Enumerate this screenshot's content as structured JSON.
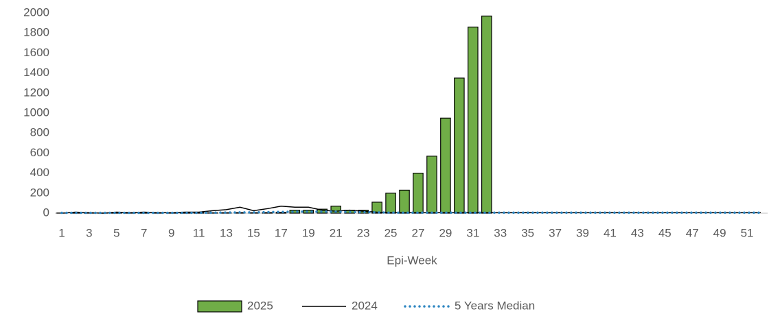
{
  "chart_data": {
    "type": "bar",
    "x_label": "Epi-Week",
    "categories": [
      "1",
      null,
      "3",
      null,
      "5",
      null,
      "7",
      null,
      "9",
      null,
      "11",
      null,
      "13",
      null,
      "15",
      null,
      "17",
      null,
      "19",
      null,
      "21",
      null,
      "23",
      null,
      "25",
      null,
      "27",
      null,
      "29",
      null,
      "31",
      null,
      "33",
      null,
      "35",
      null,
      "37",
      null,
      "39",
      null,
      "41",
      null,
      "43",
      null,
      "45",
      null,
      "47",
      null,
      "49",
      null,
      "51",
      null
    ],
    "series": [
      {
        "name": "2025",
        "type": "bar",
        "color": "#70ad47",
        "values": [
          2,
          3,
          2,
          3,
          4,
          3,
          4,
          3,
          3,
          4,
          5,
          4,
          5,
          6,
          5,
          6,
          8,
          30,
          30,
          40,
          70,
          30,
          30,
          110,
          200,
          230,
          400,
          570,
          950,
          1350,
          1860,
          1970,
          null,
          null,
          null,
          null,
          null,
          null,
          null,
          null,
          null,
          null,
          null,
          null,
          null,
          null,
          null,
          null,
          null,
          null,
          null,
          null
        ]
      },
      {
        "name": "2024",
        "type": "line",
        "color": "#000000",
        "values": [
          0,
          10,
          5,
          0,
          10,
          5,
          10,
          5,
          5,
          10,
          10,
          25,
          35,
          60,
          25,
          45,
          70,
          60,
          60,
          30,
          20,
          30,
          20,
          10,
          5,
          5,
          5,
          5,
          5,
          5,
          5,
          5,
          5,
          5,
          8,
          5,
          5,
          5,
          5,
          5,
          8,
          5,
          5,
          5,
          5,
          5,
          5,
          5,
          5,
          5,
          5,
          5
        ]
      },
      {
        "name": "5 Years Median",
        "type": "dotted",
        "color": "#2e86c1",
        "values": [
          3,
          3,
          3,
          3,
          3,
          3,
          3,
          3,
          3,
          3,
          4,
          5,
          6,
          8,
          8,
          10,
          12,
          15,
          15,
          15,
          15,
          12,
          10,
          8,
          6,
          5,
          5,
          5,
          5,
          5,
          5,
          5,
          5,
          5,
          5,
          5,
          5,
          5,
          5,
          5,
          5,
          5,
          5,
          5,
          5,
          5,
          5,
          5,
          5,
          5,
          5,
          5
        ]
      }
    ],
    "ylim": [
      0,
      2000
    ],
    "yticks": [
      0,
      200,
      400,
      600,
      800,
      1000,
      1200,
      1400,
      1600,
      1800,
      2000
    ],
    "grid": false
  }
}
